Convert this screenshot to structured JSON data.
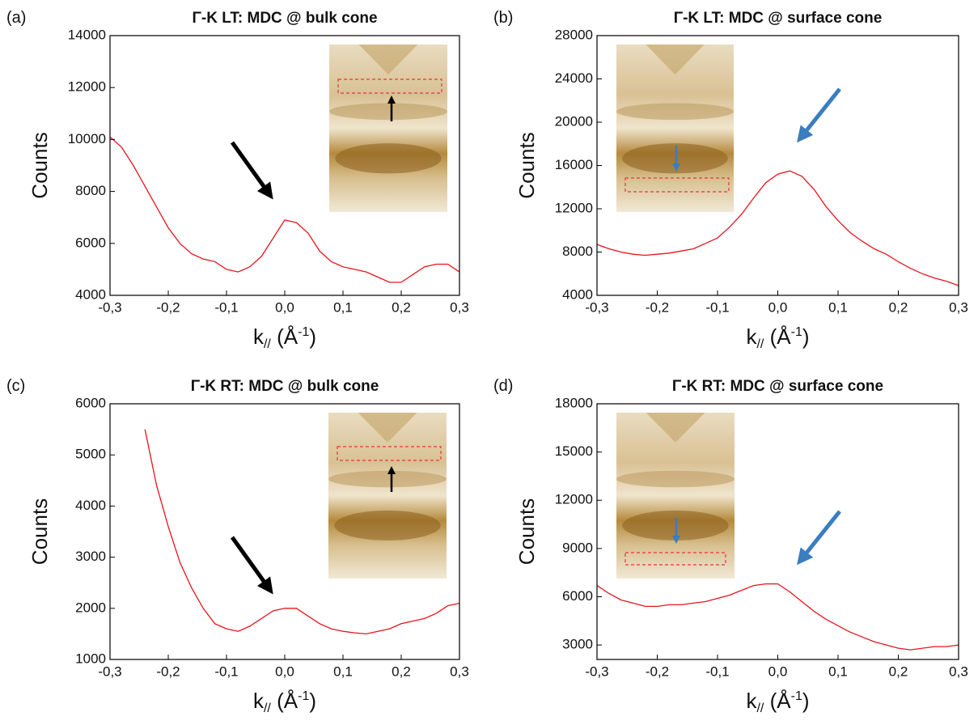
{
  "chart_data": [
    {
      "type": "line",
      "panel_label": "(a)",
      "title": "Γ-K LT: MDC @ bulk cone",
      "xlabel": [
        "k",
        "//",
        " (Å",
        "-1",
        ")"
      ],
      "ylabel": "Counts",
      "color": "#e8141c",
      "x": [
        -0.3,
        -0.28,
        -0.26,
        -0.24,
        -0.22,
        -0.2,
        -0.18,
        -0.16,
        -0.14,
        -0.12,
        -0.1,
        -0.08,
        -0.06,
        -0.04,
        -0.02,
        0,
        0.02,
        0.04,
        0.06,
        0.08,
        0.1,
        0.12,
        0.14,
        0.16,
        0.18,
        0.2,
        0.22,
        0.24,
        0.26,
        0.28,
        0.3
      ],
      "values": [
        10100,
        9700,
        9000,
        8200,
        7400,
        6600,
        6000,
        5600,
        5400,
        5300,
        5000,
        4900,
        5100,
        5500,
        6200,
        6900,
        6800,
        6400,
        5700,
        5300,
        5100,
        5000,
        4900,
        4700,
        4500,
        4500,
        4800,
        5100,
        5200,
        5200,
        4900
      ],
      "xlim": [
        -0.3,
        0.3
      ],
      "xticks": [
        {
          "value": -0.3,
          "label": "-0,3"
        },
        {
          "value": -0.2,
          "label": "-0,2"
        },
        {
          "value": -0.1,
          "label": "-0,1"
        },
        {
          "value": 0,
          "label": "0,0"
        },
        {
          "value": 0.1,
          "label": "0,1"
        },
        {
          "value": 0.2,
          "label": "0,2"
        },
        {
          "value": 0.3,
          "label": "0,3"
        }
      ],
      "ylim": [
        4000,
        14000
      ],
      "yticks": [
        4000,
        6000,
        8000,
        10000,
        12000,
        14000
      ]
    },
    {
      "type": "line",
      "panel_label": "(b)",
      "title": "Γ-K LT: MDC @ surface cone",
      "xlabel": [
        "k",
        "//",
        " (Å",
        "-1",
        ")"
      ],
      "ylabel": "Counts",
      "color": "#e8141c",
      "x": [
        -0.3,
        -0.28,
        -0.26,
        -0.24,
        -0.22,
        -0.2,
        -0.18,
        -0.16,
        -0.14,
        -0.12,
        -0.1,
        -0.08,
        -0.06,
        -0.04,
        -0.02,
        0,
        0.02,
        0.04,
        0.06,
        0.08,
        0.1,
        0.12,
        0.14,
        0.16,
        0.18,
        0.2,
        0.22,
        0.24,
        0.26,
        0.28,
        0.3
      ],
      "values": [
        8700,
        8300,
        8000,
        7800,
        7700,
        7800,
        7900,
        8100,
        8300,
        8800,
        9300,
        10300,
        11500,
        13000,
        14400,
        15200,
        15500,
        15000,
        13800,
        12200,
        10900,
        9800,
        9000,
        8300,
        7800,
        7100,
        6500,
        6000,
        5600,
        5300,
        4900
      ],
      "xlim": [
        -0.3,
        0.3
      ],
      "xticks": [
        {
          "value": -0.3,
          "label": "-0,3"
        },
        {
          "value": -0.2,
          "label": "-0,2"
        },
        {
          "value": -0.1,
          "label": "-0,1"
        },
        {
          "value": 0,
          "label": "0,0"
        },
        {
          "value": 0.1,
          "label": "0,1"
        },
        {
          "value": 0.2,
          "label": "0,2"
        },
        {
          "value": 0.3,
          "label": "0,3"
        }
      ],
      "ylim": [
        4000,
        28000
      ],
      "yticks": [
        4000,
        8000,
        12000,
        16000,
        20000,
        24000,
        28000
      ]
    },
    {
      "type": "line",
      "panel_label": "(c)",
      "title": "Γ-K RT: MDC @ bulk cone",
      "xlabel": [
        "k",
        "//",
        " (Å",
        "-1",
        ")"
      ],
      "ylabel": "Counts",
      "color": "#e8141c",
      "x": [
        -0.3,
        -0.28,
        -0.26,
        -0.24,
        -0.22,
        -0.2,
        -0.18,
        -0.16,
        -0.14,
        -0.12,
        -0.1,
        -0.08,
        -0.06,
        -0.04,
        -0.02,
        0,
        0.02,
        0.04,
        0.06,
        0.08,
        0.1,
        0.12,
        0.14,
        0.16,
        0.18,
        0.2,
        0.22,
        0.24,
        0.26,
        0.28,
        0.3
      ],
      "values": [
        null,
        null,
        null,
        5500,
        4400,
        3600,
        2900,
        2400,
        2000,
        1700,
        1600,
        1550,
        1650,
        1800,
        1950,
        2000,
        2000,
        1850,
        1700,
        1600,
        1550,
        1520,
        1500,
        1550,
        1600,
        1700,
        1750,
        1800,
        1900,
        2050,
        2100
      ],
      "xlim": [
        -0.3,
        0.3
      ],
      "xticks": [
        {
          "value": -0.3,
          "label": "-0,3"
        },
        {
          "value": -0.2,
          "label": "-0,2"
        },
        {
          "value": -0.1,
          "label": "-0,1"
        },
        {
          "value": 0,
          "label": "0,0"
        },
        {
          "value": 0.1,
          "label": "0,1"
        },
        {
          "value": 0.2,
          "label": "0,2"
        },
        {
          "value": 0.3,
          "label": "0,3"
        }
      ],
      "ylim": [
        1000,
        6000
      ],
      "yticks": [
        1000,
        2000,
        3000,
        4000,
        5000,
        6000
      ]
    },
    {
      "type": "line",
      "panel_label": "(d)",
      "title": "Γ-K RT: MDC @ surface cone",
      "xlabel": [
        "k",
        "//",
        " (Å",
        "-1",
        ")"
      ],
      "ylabel": "Counts",
      "color": "#e8141c",
      "x": [
        -0.3,
        -0.28,
        -0.26,
        -0.24,
        -0.22,
        -0.2,
        -0.18,
        -0.16,
        -0.14,
        -0.12,
        -0.1,
        -0.08,
        -0.06,
        -0.04,
        -0.02,
        0,
        0.02,
        0.04,
        0.06,
        0.08,
        0.1,
        0.12,
        0.14,
        0.16,
        0.18,
        0.2,
        0.22,
        0.24,
        0.26,
        0.28,
        0.3
      ],
      "values": [
        6700,
        6200,
        5800,
        5600,
        5400,
        5400,
        5500,
        5500,
        5600,
        5700,
        5900,
        6100,
        6400,
        6700,
        6800,
        6800,
        6300,
        5700,
        5100,
        4600,
        4200,
        3800,
        3500,
        3200,
        3000,
        2800,
        2700,
        2800,
        2900,
        2900,
        3000
      ],
      "xlim": [
        -0.3,
        0.3
      ],
      "xticks": [
        {
          "value": -0.3,
          "label": "-0,3"
        },
        {
          "value": -0.2,
          "label": "-0,2"
        },
        {
          "value": -0.1,
          "label": "-0,1"
        },
        {
          "value": 0,
          "label": "0,0"
        },
        {
          "value": 0.1,
          "label": "0,1"
        },
        {
          "value": 0.2,
          "label": "0,2"
        },
        {
          "value": 0.3,
          "label": "0,3"
        }
      ],
      "ylim": [
        2100,
        18000
      ],
      "yticks": [
        3000,
        6000,
        9000,
        12000,
        15000,
        18000
      ]
    }
  ]
}
